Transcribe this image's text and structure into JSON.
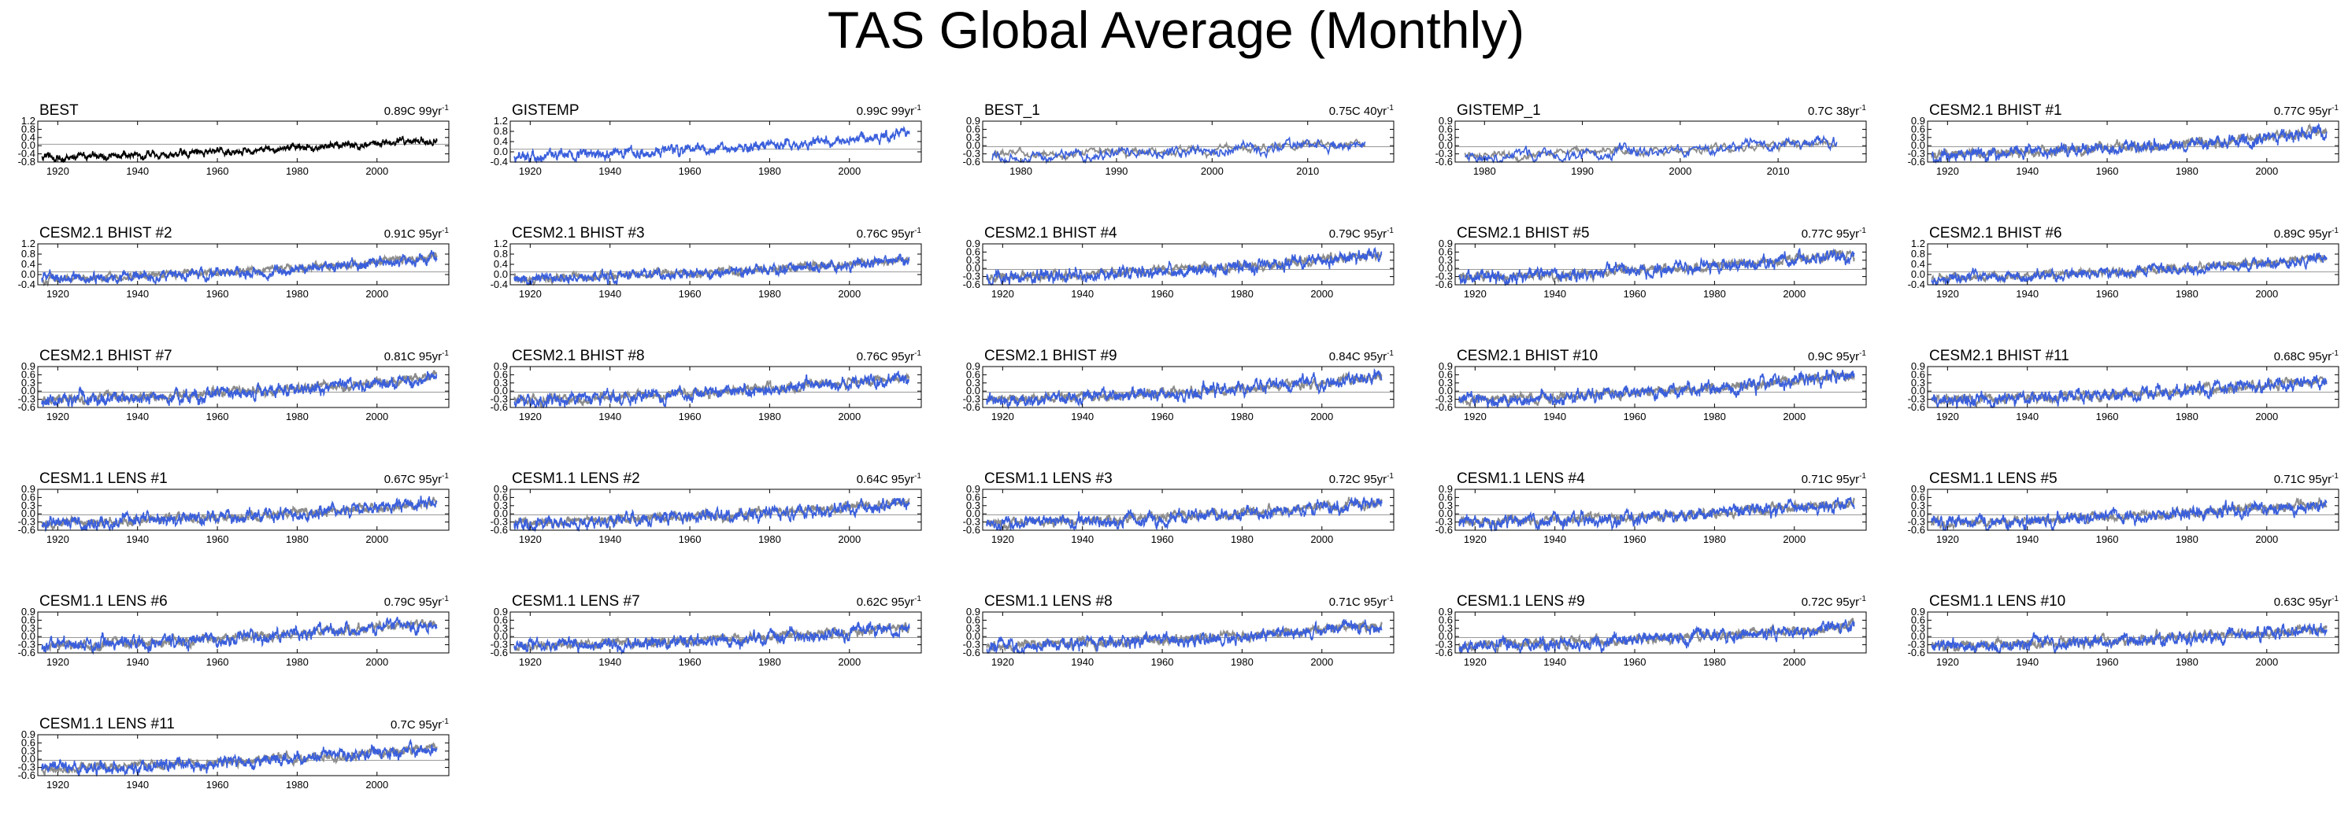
{
  "title": "TAS Global Average (Monthly)",
  "colors": {
    "observed": "#000000",
    "reference": "#8c8c8c",
    "model": "#3a5fdc",
    "zero_line": "#999999"
  },
  "chart_data": [
    {
      "type": "line",
      "label": "BEST",
      "trend": "0.89C 99yr",
      "xlim": [
        1915,
        2018
      ],
      "xticks": [
        1920,
        1940,
        1960,
        1980,
        2000
      ],
      "yticks": [
        "1.2",
        "0.8",
        "0.4",
        "0.0",
        "-0.4",
        "-0.8"
      ],
      "ylim": [
        -1.0,
        1.3
      ],
      "start": 1916,
      "end": 2015,
      "rise": 1.0,
      "style": "observed",
      "seed": 1
    },
    {
      "type": "line",
      "label": "GISTEMP",
      "trend": "0.99C 99yr",
      "xlim": [
        1915,
        2018
      ],
      "xticks": [
        1920,
        1940,
        1960,
        1980,
        2000
      ],
      "yticks": [
        "1.2",
        "0.8",
        "0.4",
        "0.0",
        "-0.4"
      ],
      "ylim": [
        -0.6,
        1.3
      ],
      "start": 1916,
      "end": 2015,
      "rise": 1.0,
      "style": "model",
      "seed": 2
    },
    {
      "type": "line",
      "label": "BEST_1",
      "trend": "0.75C 40yr",
      "xlim": [
        1976,
        2019
      ],
      "xticks": [
        1980,
        1990,
        2000,
        2010
      ],
      "yticks": [
        "0.9",
        "0.6",
        "0.3",
        "0.0",
        "-0.3",
        "-0.6"
      ],
      "ylim": [
        -0.6,
        1.0
      ],
      "start": 1977,
      "end": 2016,
      "rise": 0.5,
      "style": "model-ref",
      "seed": 3
    },
    {
      "type": "line",
      "label": "GISTEMP_1",
      "trend": "0.7C 38yr",
      "xlim": [
        1977,
        2019
      ],
      "xticks": [
        1980,
        1990,
        2000,
        2010
      ],
      "yticks": [
        "0.9",
        "0.6",
        "0.3",
        "0.0",
        "-0.3",
        "-0.6"
      ],
      "ylim": [
        -0.6,
        1.0
      ],
      "start": 1978,
      "end": 2016,
      "rise": 0.5,
      "style": "model-ref",
      "seed": 4
    },
    {
      "type": "line",
      "label": "CESM2.1 BHIST #1",
      "trend": "0.77C 95yr",
      "xlim": [
        1915,
        2018
      ],
      "xticks": [
        1920,
        1940,
        1960,
        1980,
        2000
      ],
      "yticks": [
        "0.9",
        "0.6",
        "0.3",
        "0.0",
        "-0.3",
        "-0.6"
      ],
      "ylim": [
        -0.6,
        1.0
      ],
      "start": 1916,
      "end": 2015,
      "rise": 0.9,
      "style": "model-ref",
      "seed": 5
    },
    {
      "type": "line",
      "label": "CESM2.1 BHIST #2",
      "trend": "0.91C 95yr",
      "xlim": [
        1915,
        2018
      ],
      "xticks": [
        1920,
        1940,
        1960,
        1980,
        2000
      ],
      "yticks": [
        "1.2",
        "0.8",
        "0.4",
        "0.0",
        "-0.4"
      ],
      "ylim": [
        -0.6,
        1.3
      ],
      "start": 1916,
      "end": 2015,
      "rise": 1.0,
      "style": "model-ref",
      "seed": 6
    },
    {
      "type": "line",
      "label": "CESM2.1 BHIST #3",
      "trend": "0.76C 95yr",
      "xlim": [
        1915,
        2018
      ],
      "xticks": [
        1920,
        1940,
        1960,
        1980,
        2000
      ],
      "yticks": [
        "1.2",
        "0.8",
        "0.4",
        "0.0",
        "-0.4"
      ],
      "ylim": [
        -0.6,
        1.3
      ],
      "start": 1916,
      "end": 2015,
      "rise": 0.9,
      "style": "model-ref",
      "seed": 7
    },
    {
      "type": "line",
      "label": "CESM2.1 BHIST #4",
      "trend": "0.79C 95yr",
      "xlim": [
        1915,
        2018
      ],
      "xticks": [
        1920,
        1940,
        1960,
        1980,
        2000
      ],
      "yticks": [
        "0.9",
        "0.6",
        "0.3",
        "0.0",
        "-0.3",
        "-0.6"
      ],
      "ylim": [
        -0.6,
        1.0
      ],
      "start": 1916,
      "end": 2015,
      "rise": 0.9,
      "style": "model-ref",
      "seed": 8
    },
    {
      "type": "line",
      "label": "CESM2.1 BHIST #5",
      "trend": "0.77C 95yr",
      "xlim": [
        1915,
        2018
      ],
      "xticks": [
        1920,
        1940,
        1960,
        1980,
        2000
      ],
      "yticks": [
        "0.9",
        "0.6",
        "0.3",
        "0.0",
        "-0.3",
        "-0.6"
      ],
      "ylim": [
        -0.6,
        1.0
      ],
      "start": 1916,
      "end": 2015,
      "rise": 0.9,
      "style": "model-ref",
      "seed": 9
    },
    {
      "type": "line",
      "label": "CESM2.1 BHIST #6",
      "trend": "0.89C 95yr",
      "xlim": [
        1915,
        2018
      ],
      "xticks": [
        1920,
        1940,
        1960,
        1980,
        2000
      ],
      "yticks": [
        "1.2",
        "0.8",
        "0.4",
        "0.0",
        "-0.4"
      ],
      "ylim": [
        -0.6,
        1.3
      ],
      "start": 1916,
      "end": 2015,
      "rise": 1.0,
      "style": "model-ref",
      "seed": 10
    },
    {
      "type": "line",
      "label": "CESM2.1 BHIST #7",
      "trend": "0.81C 95yr",
      "xlim": [
        1915,
        2018
      ],
      "xticks": [
        1920,
        1940,
        1960,
        1980,
        2000
      ],
      "yticks": [
        "0.9",
        "0.6",
        "0.3",
        "0.0",
        "-0.3",
        "-0.6"
      ],
      "ylim": [
        -0.6,
        1.0
      ],
      "start": 1916,
      "end": 2015,
      "rise": 0.9,
      "style": "model-ref",
      "seed": 11
    },
    {
      "type": "line",
      "label": "CESM2.1 BHIST #8",
      "trend": "0.76C 95yr",
      "xlim": [
        1915,
        2018
      ],
      "xticks": [
        1920,
        1940,
        1960,
        1980,
        2000
      ],
      "yticks": [
        "0.9",
        "0.6",
        "0.3",
        "0.0",
        "-0.3",
        "-0.6"
      ],
      "ylim": [
        -0.6,
        1.0
      ],
      "start": 1916,
      "end": 2015,
      "rise": 0.9,
      "style": "model-ref",
      "seed": 12
    },
    {
      "type": "line",
      "label": "CESM2.1 BHIST #9",
      "trend": "0.84C 95yr",
      "xlim": [
        1915,
        2018
      ],
      "xticks": [
        1920,
        1940,
        1960,
        1980,
        2000
      ],
      "yticks": [
        "0.9",
        "0.6",
        "0.3",
        "0.0",
        "-0.3",
        "-0.6"
      ],
      "ylim": [
        -0.6,
        1.0
      ],
      "start": 1916,
      "end": 2015,
      "rise": 0.9,
      "style": "model-ref",
      "seed": 13
    },
    {
      "type": "line",
      "label": "CESM2.1 BHIST #10",
      "trend": "0.9C 95yr",
      "xlim": [
        1915,
        2018
      ],
      "xticks": [
        1920,
        1940,
        1960,
        1980,
        2000
      ],
      "yticks": [
        "0.9",
        "0.6",
        "0.3",
        "0.0",
        "-0.3",
        "-0.6"
      ],
      "ylim": [
        -0.6,
        1.0
      ],
      "start": 1916,
      "end": 2015,
      "rise": 1.0,
      "style": "model-ref",
      "seed": 14
    },
    {
      "type": "line",
      "label": "CESM2.1 BHIST #11",
      "trend": "0.68C 95yr",
      "xlim": [
        1915,
        2018
      ],
      "xticks": [
        1920,
        1940,
        1960,
        1980,
        2000
      ],
      "yticks": [
        "0.9",
        "0.6",
        "0.3",
        "0.0",
        "-0.3",
        "-0.6"
      ],
      "ylim": [
        -0.6,
        1.0
      ],
      "start": 1916,
      "end": 2015,
      "rise": 0.8,
      "style": "model-ref",
      "seed": 15
    },
    {
      "type": "line",
      "label": "CESM1.1 LENS #1",
      "trend": "0.67C 95yr",
      "xlim": [
        1915,
        2018
      ],
      "xticks": [
        1920,
        1940,
        1960,
        1980,
        2000
      ],
      "yticks": [
        "0.9",
        "0.6",
        "0.3",
        "0.0",
        "-0.3",
        "-0.6"
      ],
      "ylim": [
        -0.6,
        1.0
      ],
      "start": 1916,
      "end": 2015,
      "rise": 0.8,
      "style": "model-ref",
      "seed": 16
    },
    {
      "type": "line",
      "label": "CESM1.1 LENS #2",
      "trend": "0.64C 95yr",
      "xlim": [
        1915,
        2018
      ],
      "xticks": [
        1920,
        1940,
        1960,
        1980,
        2000
      ],
      "yticks": [
        "0.9",
        "0.6",
        "0.3",
        "0.0",
        "-0.3",
        "-0.6"
      ],
      "ylim": [
        -0.6,
        1.0
      ],
      "start": 1916,
      "end": 2015,
      "rise": 0.8,
      "style": "model-ref",
      "seed": 17
    },
    {
      "type": "line",
      "label": "CESM1.1 LENS #3",
      "trend": "0.72C 95yr",
      "xlim": [
        1915,
        2018
      ],
      "xticks": [
        1920,
        1940,
        1960,
        1980,
        2000
      ],
      "yticks": [
        "0.9",
        "0.6",
        "0.3",
        "0.0",
        "-0.3",
        "-0.6"
      ],
      "ylim": [
        -0.6,
        1.0
      ],
      "start": 1916,
      "end": 2015,
      "rise": 0.8,
      "style": "model-ref",
      "seed": 18
    },
    {
      "type": "line",
      "label": "CESM1.1 LENS #4",
      "trend": "0.71C 95yr",
      "xlim": [
        1915,
        2018
      ],
      "xticks": [
        1920,
        1940,
        1960,
        1980,
        2000
      ],
      "yticks": [
        "0.9",
        "0.6",
        "0.3",
        "0.0",
        "-0.3",
        "-0.6"
      ],
      "ylim": [
        -0.6,
        1.0
      ],
      "start": 1916,
      "end": 2015,
      "rise": 0.8,
      "style": "model-ref",
      "seed": 19
    },
    {
      "type": "line",
      "label": "CESM1.1 LENS #5",
      "trend": "0.71C 95yr",
      "xlim": [
        1915,
        2018
      ],
      "xticks": [
        1920,
        1940,
        1960,
        1980,
        2000
      ],
      "yticks": [
        "0.9",
        "0.6",
        "0.3",
        "0.0",
        "-0.3",
        "-0.6"
      ],
      "ylim": [
        -0.6,
        1.0
      ],
      "start": 1916,
      "end": 2015,
      "rise": 0.8,
      "style": "model-ref",
      "seed": 20
    },
    {
      "type": "line",
      "label": "CESM1.1 LENS #6",
      "trend": "0.79C 95yr",
      "xlim": [
        1915,
        2018
      ],
      "xticks": [
        1920,
        1940,
        1960,
        1980,
        2000
      ],
      "yticks": [
        "0.9",
        "0.6",
        "0.3",
        "0.0",
        "-0.3",
        "-0.6"
      ],
      "ylim": [
        -0.6,
        1.0
      ],
      "start": 1916,
      "end": 2015,
      "rise": 0.9,
      "style": "model-ref",
      "seed": 21
    },
    {
      "type": "line",
      "label": "CESM1.1 LENS #7",
      "trend": "0.62C 95yr",
      "xlim": [
        1915,
        2018
      ],
      "xticks": [
        1920,
        1940,
        1960,
        1980,
        2000
      ],
      "yticks": [
        "0.9",
        "0.6",
        "0.3",
        "0.0",
        "-0.3",
        "-0.6"
      ],
      "ylim": [
        -0.6,
        1.0
      ],
      "start": 1916,
      "end": 2015,
      "rise": 0.7,
      "style": "model-ref",
      "seed": 22
    },
    {
      "type": "line",
      "label": "CESM1.1 LENS #8",
      "trend": "0.71C 95yr",
      "xlim": [
        1915,
        2018
      ],
      "xticks": [
        1920,
        1940,
        1960,
        1980,
        2000
      ],
      "yticks": [
        "0.9",
        "0.6",
        "0.3",
        "0.0",
        "-0.3",
        "-0.6"
      ],
      "ylim": [
        -0.6,
        1.0
      ],
      "start": 1916,
      "end": 2015,
      "rise": 0.8,
      "style": "model-ref",
      "seed": 23
    },
    {
      "type": "line",
      "label": "CESM1.1 LENS #9",
      "trend": "0.72C 95yr",
      "xlim": [
        1915,
        2018
      ],
      "xticks": [
        1920,
        1940,
        1960,
        1980,
        2000
      ],
      "yticks": [
        "0.9",
        "0.6",
        "0.3",
        "0.0",
        "-0.3",
        "-0.6"
      ],
      "ylim": [
        -0.6,
        1.0
      ],
      "start": 1916,
      "end": 2015,
      "rise": 0.8,
      "style": "model-ref",
      "seed": 24
    },
    {
      "type": "line",
      "label": "CESM1.1 LENS #10",
      "trend": "0.63C 95yr",
      "xlim": [
        1915,
        2018
      ],
      "xticks": [
        1920,
        1940,
        1960,
        1980,
        2000
      ],
      "yticks": [
        "0.9",
        "0.6",
        "0.3",
        "0.0",
        "-0.3",
        "-0.6"
      ],
      "ylim": [
        -0.6,
        1.0
      ],
      "start": 1916,
      "end": 2015,
      "rise": 0.7,
      "style": "model-ref",
      "seed": 25
    },
    {
      "type": "line",
      "label": "CESM1.1 LENS #11",
      "trend": "0.7C 95yr",
      "xlim": [
        1915,
        2018
      ],
      "xticks": [
        1920,
        1940,
        1960,
        1980,
        2000
      ],
      "yticks": [
        "0.9",
        "0.6",
        "0.3",
        "0.0",
        "-0.3",
        "-0.6"
      ],
      "ylim": [
        -0.6,
        1.0
      ],
      "start": 1916,
      "end": 2015,
      "rise": 0.8,
      "style": "model-ref",
      "seed": 26
    }
  ]
}
